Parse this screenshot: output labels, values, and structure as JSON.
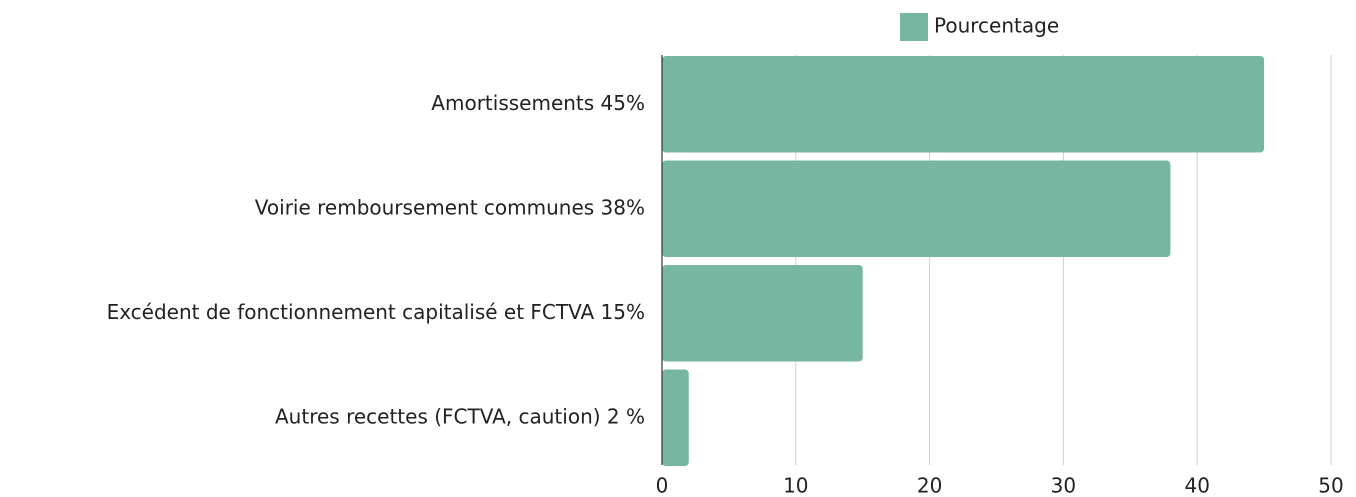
{
  "chart_data": {
    "type": "bar",
    "orientation": "horizontal",
    "categories": [
      "Amortissements 45%",
      "Voirie remboursement communes 38%",
      "Excédent de fonctionnement capitalisé et FCTVA 15%",
      "Autres recettes (FCTVA, caution) 2 %"
    ],
    "series": [
      {
        "name": "Pourcentage",
        "color": "#77b6a0",
        "values": [
          45,
          38,
          15,
          2
        ]
      }
    ],
    "xlim": [
      0,
      50
    ],
    "xticks": [
      0,
      10,
      20,
      30,
      40,
      50
    ],
    "grid": true,
    "legend": "top"
  }
}
